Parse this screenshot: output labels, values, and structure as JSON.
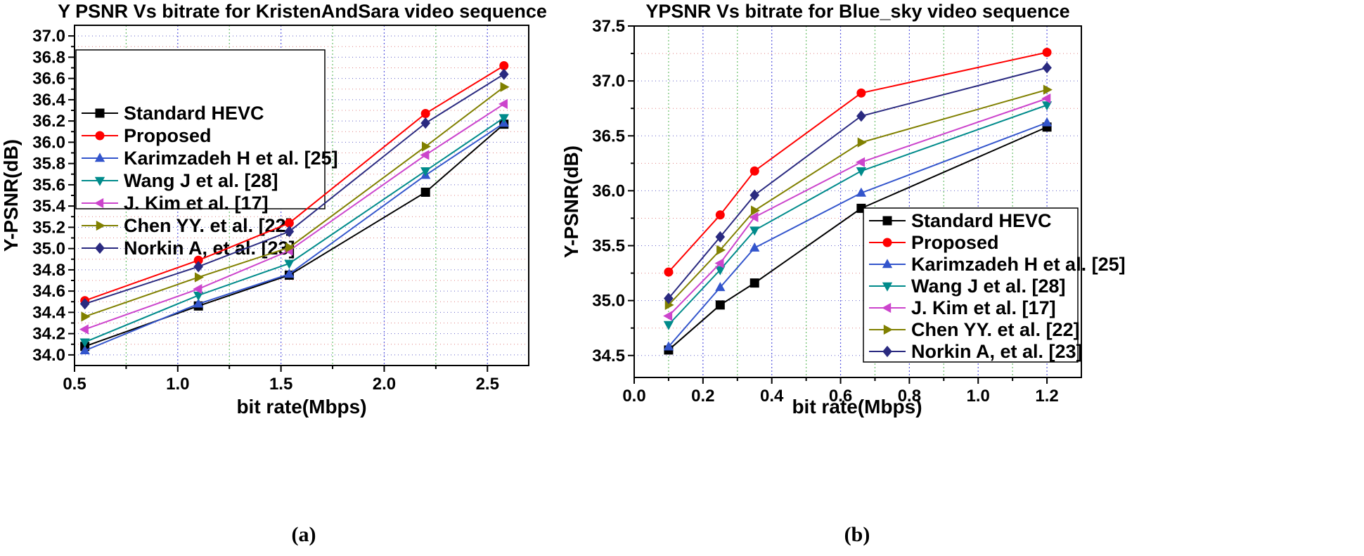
{
  "chart_data": [
    {
      "type": "line",
      "panel_label": "(a)",
      "title": "Y PSNR Vs bitrate for KristenAndSara video sequence",
      "xlabel": "bit rate(Mbps)",
      "ylabel": "Y-PSNR(dB)",
      "xlim": [
        0.5,
        2.7
      ],
      "ylim": [
        33.9,
        37.1
      ],
      "xticks": [
        0.5,
        1.0,
        1.5,
        2.0,
        2.5
      ],
      "xtick_labels": [
        "0.5",
        "1.0",
        "1.5",
        "2.0",
        "2.5"
      ],
      "yticks": [
        34.0,
        34.2,
        34.4,
        34.6,
        34.8,
        35.0,
        35.2,
        35.4,
        35.6,
        35.8,
        36.0,
        36.2,
        36.4,
        36.6,
        36.8,
        37.0
      ],
      "ytick_labels": [
        "34.0",
        "34.2",
        "34.4",
        "34.6",
        "34.8",
        "35.0",
        "35.2",
        "35.4",
        "35.6",
        "35.8",
        "36.0",
        "36.2",
        "36.4",
        "36.6",
        "36.8",
        "37.0"
      ],
      "legend_position": "top-left",
      "x": [
        0.55,
        1.1,
        1.54,
        2.2,
        2.58
      ],
      "series": [
        {
          "name": "Standard HEVC",
          "color": "#000000",
          "marker": "square",
          "values": [
            34.08,
            34.46,
            34.75,
            35.53,
            36.17
          ]
        },
        {
          "name": "Proposed",
          "color": "#ff0000",
          "marker": "circle",
          "values": [
            34.51,
            34.89,
            35.24,
            36.27,
            36.72
          ]
        },
        {
          "name": "Karimzadeh H et al. [25]",
          "color": "#3355cc",
          "marker": "triangle-up",
          "values": [
            34.04,
            34.48,
            34.76,
            35.69,
            36.18
          ]
        },
        {
          "name": "Wang J et al. [28]",
          "color": "#008b8b",
          "marker": "triangle-down",
          "values": [
            34.12,
            34.56,
            34.86,
            35.73,
            36.23
          ]
        },
        {
          "name": "J. Kim et al. [17]",
          "color": "#cc44cc",
          "marker": "triangle-left",
          "values": [
            34.24,
            34.62,
            34.98,
            35.88,
            36.36
          ]
        },
        {
          "name": "Chen YY. et al. [22]",
          "color": "#808000",
          "marker": "triangle-right",
          "values": [
            34.36,
            34.73,
            35.01,
            35.96,
            36.52
          ]
        },
        {
          "name": "Norkin A, et al. [23]",
          "color": "#2a2a80",
          "marker": "diamond",
          "values": [
            34.48,
            34.83,
            35.16,
            36.18,
            36.64
          ]
        }
      ]
    },
    {
      "type": "line",
      "panel_label": "(b)",
      "title": "YPSNR Vs bitrate for Blue_sky video sequence",
      "xlabel": "bit rate(Mbps)",
      "ylabel": "Y-PSNR(dB)",
      "xlim": [
        0.0,
        1.3
      ],
      "ylim": [
        34.3,
        37.5
      ],
      "xticks": [
        0.0,
        0.2,
        0.4,
        0.6,
        0.8,
        1.0,
        1.2
      ],
      "xtick_labels": [
        "0.0",
        "0.2",
        "0.4",
        "0.6",
        "0.8",
        "1.0",
        "1.2"
      ],
      "yticks": [
        34.5,
        35.0,
        35.5,
        36.0,
        36.5,
        37.0,
        37.5
      ],
      "ytick_labels": [
        "34.5",
        "35.0",
        "35.5",
        "36.0",
        "36.5",
        "37.0",
        "37.5"
      ],
      "legend_position": "bottom-right",
      "x": [
        0.1,
        0.25,
        0.35,
        0.66,
        1.2
      ],
      "series": [
        {
          "name": "Standard HEVC",
          "color": "#000000",
          "marker": "square",
          "values": [
            34.55,
            34.96,
            35.16,
            35.84,
            36.58
          ]
        },
        {
          "name": "Proposed",
          "color": "#ff0000",
          "marker": "circle",
          "values": [
            35.26,
            35.78,
            36.18,
            36.89,
            37.26
          ]
        },
        {
          "name": "Karimzadeh H et al. [25]",
          "color": "#3355cc",
          "marker": "triangle-up",
          "values": [
            34.58,
            35.12,
            35.48,
            35.98,
            36.62
          ]
        },
        {
          "name": "Wang J et al. [28]",
          "color": "#008b8b",
          "marker": "triangle-down",
          "values": [
            34.78,
            35.28,
            35.64,
            36.18,
            36.78
          ]
        },
        {
          "name": "J. Kim et al. [17]",
          "color": "#cc44cc",
          "marker": "triangle-left",
          "values": [
            34.86,
            35.34,
            35.76,
            36.26,
            36.84
          ]
        },
        {
          "name": "Chen YY. et al. [22]",
          "color": "#808000",
          "marker": "triangle-right",
          "values": [
            34.96,
            35.46,
            35.82,
            36.44,
            36.92
          ]
        },
        {
          "name": "Norkin A, et al. [23]",
          "color": "#2a2a80",
          "marker": "diamond",
          "values": [
            35.02,
            35.58,
            35.96,
            36.68,
            37.12
          ]
        }
      ]
    }
  ]
}
